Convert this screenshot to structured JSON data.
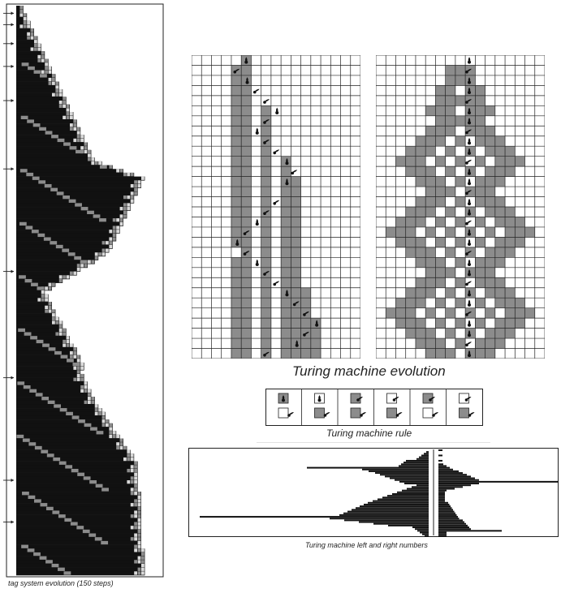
{
  "captions": {
    "tag_system": "tag system evolution (150 steps)",
    "tm_evolution": "Turing machine evolution",
    "tm_rule": "Turing machine rule",
    "tm_numbers": "Turing machine left and right numbers"
  },
  "colors": {
    "black": "#111111",
    "gray": "#8c8c8c",
    "light": "#d9d9d9",
    "white": "#ffffff",
    "line": "#222222"
  }
}
